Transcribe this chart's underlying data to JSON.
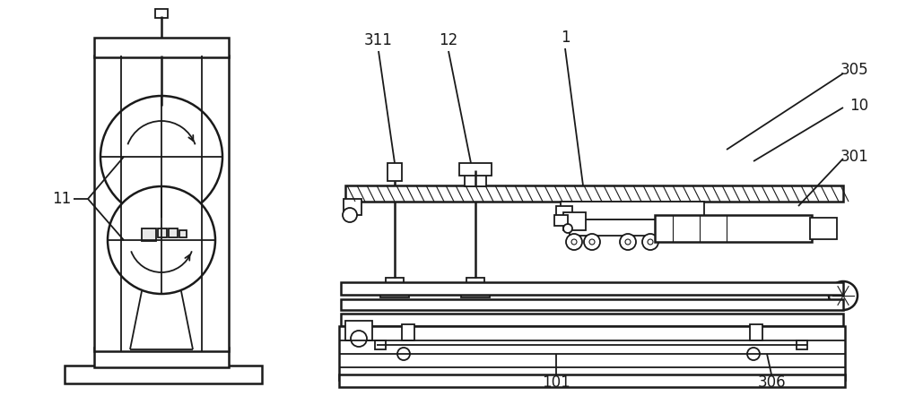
{
  "bg_color": "#ffffff",
  "line_color": "#1a1a1a",
  "lw": 1.3,
  "lw2": 1.8,
  "lw3": 0.8,
  "fig_width": 10.0,
  "fig_height": 4.42,
  "dpi": 100,
  "label_fontsize": 12,
  "label_font": "DejaVu Sans"
}
